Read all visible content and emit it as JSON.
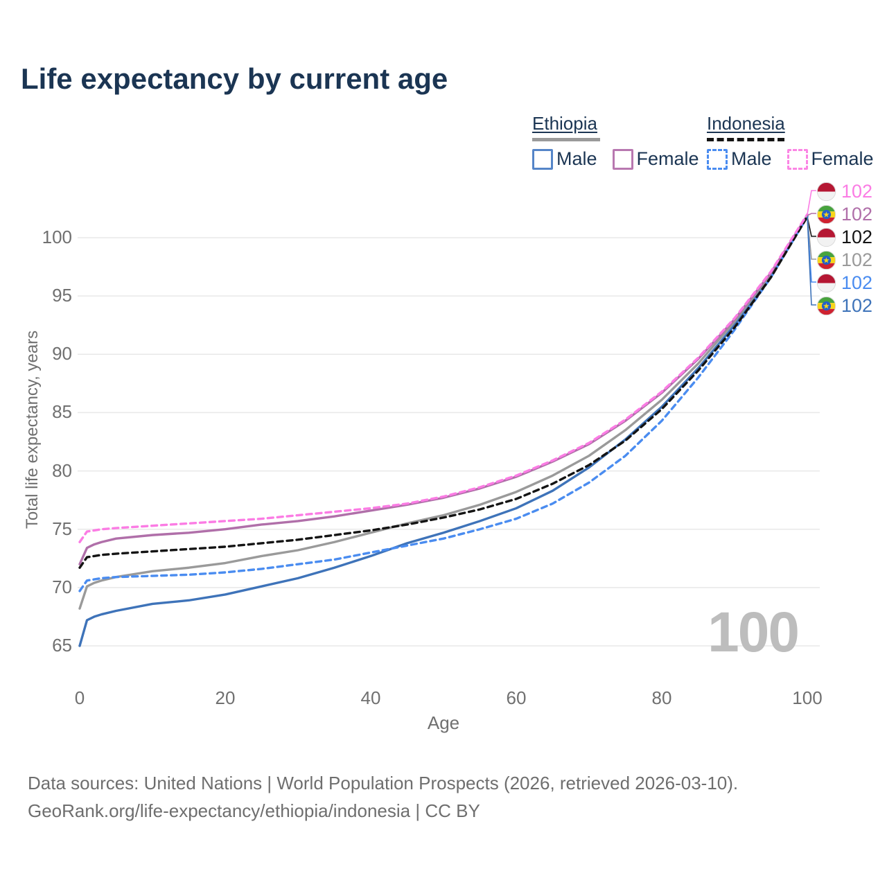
{
  "header": {
    "title": "Life expectancy by current age"
  },
  "legend": {
    "ethiopia": {
      "label": "Ethiopia",
      "male_label": "Male",
      "female_label": "Female",
      "line_style": "solid",
      "line_color": "#9a9a9a",
      "male_color": "#5585c8",
      "female_color": "#b878b0"
    },
    "indonesia": {
      "label": "Indonesia",
      "male_label": "Male",
      "female_label": "Female",
      "line_style": "dashed",
      "line_color": "#141414",
      "male_color": "#4a8cf0",
      "female_color": "#fb86e4"
    }
  },
  "chart_data": {
    "type": "line",
    "title": "Life expectancy by current age",
    "xlabel": "Age",
    "ylabel": "Total life expectancy, years",
    "xlim": [
      0,
      100
    ],
    "ylim": [
      63,
      103
    ],
    "x_ticks": [
      0,
      20,
      40,
      60,
      80,
      100
    ],
    "y_ticks": [
      65,
      70,
      75,
      80,
      85,
      90,
      95,
      100
    ],
    "grid": "horizontal-only",
    "legend_position": "top-right",
    "age_counter_watermark": "100",
    "x": [
      0,
      1,
      2,
      3,
      5,
      10,
      15,
      20,
      25,
      30,
      35,
      40,
      45,
      50,
      55,
      60,
      65,
      70,
      75,
      80,
      85,
      90,
      95,
      100
    ],
    "series": [
      {
        "name": "Ethiopia Male",
        "country": "Ethiopia",
        "sex": "Male",
        "color": "#3e73b9",
        "dash": "solid",
        "values": [
          65.0,
          67.2,
          67.5,
          67.7,
          68.0,
          68.6,
          68.9,
          69.4,
          70.1,
          70.8,
          71.7,
          72.7,
          73.8,
          74.7,
          75.7,
          76.8,
          78.3,
          80.3,
          82.7,
          85.5,
          88.8,
          92.5,
          96.9,
          101.8
        ]
      },
      {
        "name": "Ethiopia Total",
        "country": "Ethiopia",
        "sex": "Total",
        "color": "#9a9a9a",
        "dash": "solid",
        "values": [
          68.2,
          70.1,
          70.4,
          70.6,
          70.9,
          71.4,
          71.7,
          72.1,
          72.7,
          73.2,
          73.9,
          74.7,
          75.5,
          76.2,
          77.1,
          78.2,
          79.6,
          81.3,
          83.5,
          86.1,
          89.2,
          92.8,
          96.9,
          101.9
        ]
      },
      {
        "name": "Ethiopia Female",
        "country": "Ethiopia",
        "sex": "Female",
        "color": "#b06fa9",
        "dash": "solid",
        "values": [
          72.0,
          73.4,
          73.7,
          73.9,
          74.2,
          74.5,
          74.7,
          75.0,
          75.4,
          75.7,
          76.1,
          76.6,
          77.1,
          77.7,
          78.5,
          79.5,
          80.8,
          82.3,
          84.3,
          86.7,
          89.6,
          93.0,
          97.0,
          101.9
        ]
      },
      {
        "name": "Indonesia Male",
        "country": "Indonesia",
        "sex": "Male",
        "color": "#4a8cf0",
        "dash": "dashed",
        "values": [
          69.7,
          70.6,
          70.7,
          70.8,
          70.9,
          71.0,
          71.1,
          71.3,
          71.6,
          72.0,
          72.4,
          73.0,
          73.6,
          74.2,
          75.0,
          75.9,
          77.2,
          79.0,
          81.3,
          84.3,
          88.0,
          92.1,
          96.6,
          101.8
        ]
      },
      {
        "name": "Indonesia Total",
        "country": "Indonesia",
        "sex": "Total",
        "color": "#141414",
        "dash": "dashed",
        "values": [
          71.7,
          72.6,
          72.7,
          72.8,
          72.9,
          73.1,
          73.3,
          73.5,
          73.8,
          74.1,
          74.5,
          74.9,
          75.4,
          76.0,
          76.7,
          77.6,
          78.9,
          80.5,
          82.6,
          85.3,
          88.6,
          92.3,
          96.6,
          101.8
        ]
      },
      {
        "name": "Indonesia Female",
        "country": "Indonesia",
        "sex": "Female",
        "color": "#fb7ce4",
        "dash": "dashed",
        "values": [
          73.9,
          74.8,
          74.9,
          75.0,
          75.1,
          75.3,
          75.5,
          75.7,
          75.9,
          76.2,
          76.5,
          76.8,
          77.2,
          77.8,
          78.6,
          79.6,
          80.9,
          82.4,
          84.4,
          86.8,
          89.7,
          93.1,
          97.1,
          102.0
        ]
      }
    ],
    "end_labels": [
      {
        "value": "102",
        "series": "Indonesia Female",
        "flag": "indonesia",
        "color": "#fb7ce4"
      },
      {
        "value": "102",
        "series": "Ethiopia Female",
        "flag": "ethiopia",
        "color": "#b06fa9"
      },
      {
        "value": "102",
        "series": "Indonesia Total",
        "flag": "indonesia",
        "color": "#141414"
      },
      {
        "value": "102",
        "series": "Ethiopia Total",
        "flag": "ethiopia",
        "color": "#9a9a9a"
      },
      {
        "value": "102",
        "series": "Indonesia Male",
        "flag": "indonesia",
        "color": "#4a8cf0"
      },
      {
        "value": "102",
        "series": "Ethiopia Male",
        "flag": "ethiopia",
        "color": "#3e73b9"
      }
    ]
  },
  "footer": {
    "line1": "Data sources: United Nations | World Population Prospects (2026, retrieved 2026-03-10).",
    "line2": "GeoRank.org/life-expectancy/ethiopia/indonesia | CC BY"
  }
}
